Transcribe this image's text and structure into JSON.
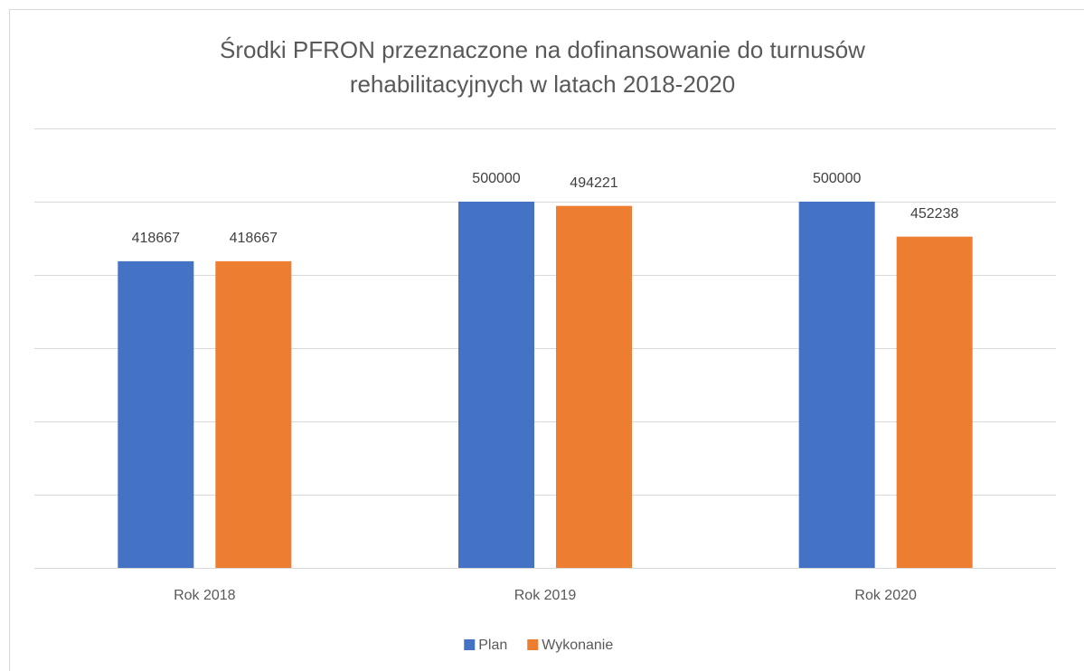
{
  "chart_data": {
    "type": "bar",
    "title": "Środki PFRON przeznaczone na dofinansowanie do turnusów rehabilitacyjnych w latach 2018-2020",
    "categories": [
      "Rok 2018",
      "Rok 2019",
      "Rok 2020"
    ],
    "series": [
      {
        "name": "Plan",
        "color": "#4472c4",
        "values": [
          418667,
          500000,
          500000
        ]
      },
      {
        "name": "Wykonanie",
        "color": "#ed7d31",
        "values": [
          418667,
          494221,
          452238
        ]
      }
    ],
    "ylim": [
      0,
      600000
    ],
    "yticks": [
      0,
      100000,
      200000,
      300000,
      400000,
      500000,
      600000
    ],
    "grid": true,
    "legend": "bottom"
  }
}
